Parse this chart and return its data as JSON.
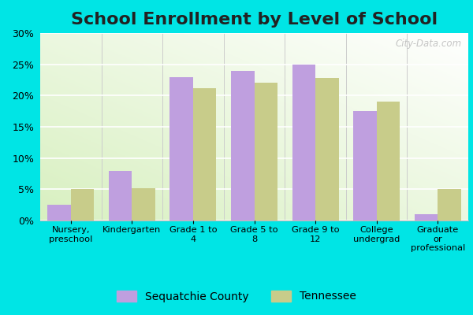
{
  "title": "School Enrollment by Level of School",
  "categories": [
    "Nursery,\npreschool",
    "Kindergarten",
    "Grade 1 to\n4",
    "Grade 5 to\n8",
    "Grade 9 to\n12",
    "College\nundergrad",
    "Graduate\nor\nprofessional"
  ],
  "sequatchie": [
    2.5,
    8.0,
    23.0,
    24.0,
    25.0,
    17.5,
    1.0
  ],
  "tennessee": [
    5.0,
    5.2,
    21.2,
    22.0,
    22.8,
    19.0,
    5.0
  ],
  "color_sequatchie": "#bf9fdf",
  "color_tennessee": "#c8cc8a",
  "legend_sequatchie": "Sequatchie County",
  "legend_tennessee": "Tennessee",
  "ylim": [
    0,
    30
  ],
  "yticks": [
    0,
    5,
    10,
    15,
    20,
    25,
    30
  ],
  "outer_background": "#00e5e5",
  "watermark": "City-Data.com",
  "title_fontsize": 16,
  "bar_width": 0.38
}
